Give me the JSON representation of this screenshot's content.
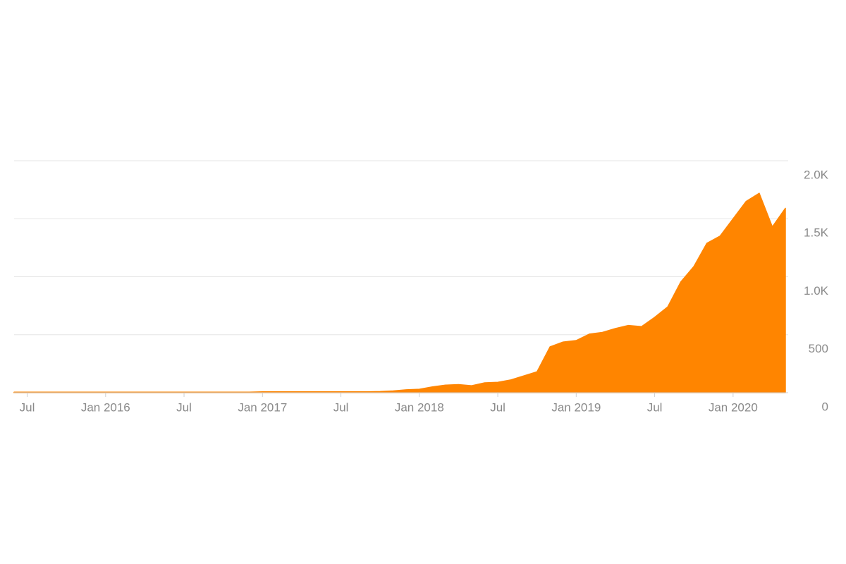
{
  "chart_data": {
    "type": "area",
    "x": [
      "2015-06",
      "2015-07",
      "2015-08",
      "2015-09",
      "2015-10",
      "2015-11",
      "2015-12",
      "2016-01",
      "2016-02",
      "2016-03",
      "2016-04",
      "2016-05",
      "2016-06",
      "2016-07",
      "2016-08",
      "2016-09",
      "2016-10",
      "2016-11",
      "2016-12",
      "2017-01",
      "2017-02",
      "2017-03",
      "2017-04",
      "2017-05",
      "2017-06",
      "2017-07",
      "2017-08",
      "2017-09",
      "2017-10",
      "2017-11",
      "2017-12",
      "2018-01",
      "2018-02",
      "2018-03",
      "2018-04",
      "2018-05",
      "2018-06",
      "2018-07",
      "2018-08",
      "2018-09",
      "2018-10",
      "2018-11",
      "2018-12",
      "2019-01",
      "2019-02",
      "2019-03",
      "2019-04",
      "2019-05",
      "2019-06",
      "2019-07",
      "2019-08",
      "2019-09",
      "2019-10",
      "2019-11",
      "2019-12",
      "2020-01",
      "2020-02",
      "2020-03",
      "2020-04",
      "2020-05"
    ],
    "series": [
      {
        "color": "#ff8500",
        "values": [
          5,
          5,
          5,
          5,
          5,
          5,
          5,
          5,
          5,
          5,
          5,
          5,
          5,
          5,
          5,
          5,
          5,
          5,
          5,
          8,
          8,
          8,
          8,
          8,
          8,
          8,
          8,
          8,
          10,
          15,
          25,
          30,
          50,
          65,
          70,
          60,
          85,
          90,
          110,
          145,
          180,
          395,
          437,
          450,
          505,
          520,
          553,
          580,
          570,
          650,
          740,
          955,
          1088,
          1289,
          1350,
          1500,
          1650,
          1720,
          1430,
          1590
        ]
      }
    ],
    "xlim": [
      "2015-06",
      "2020-05"
    ],
    "xticks": [
      {
        "value": "2015-07",
        "label": "Jul"
      },
      {
        "value": "2016-01",
        "label": "Jan 2016"
      },
      {
        "value": "2016-07",
        "label": "Jul"
      },
      {
        "value": "2017-01",
        "label": "Jan 2017"
      },
      {
        "value": "2017-07",
        "label": "Jul"
      },
      {
        "value": "2018-01",
        "label": "Jan 2018"
      },
      {
        "value": "2018-07",
        "label": "Jul"
      },
      {
        "value": "2019-01",
        "label": "Jan 2019"
      },
      {
        "value": "2019-07",
        "label": "Jul"
      },
      {
        "value": "2020-01",
        "label": "Jan 2020"
      }
    ],
    "ylim": [
      0,
      2000
    ],
    "yticks": [
      0,
      500,
      {
        "value": 1000,
        "label": "1.0K"
      },
      {
        "value": 1500,
        "label": "1.5K"
      },
      {
        "value": 2000,
        "label": "2.0K"
      }
    ],
    "grid": true
  }
}
